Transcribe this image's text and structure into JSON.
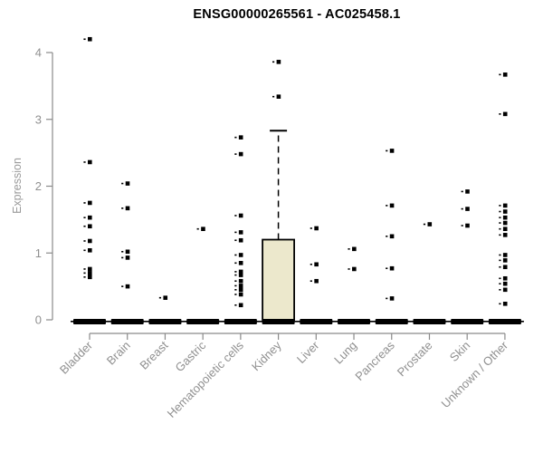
{
  "chart_data": {
    "type": "boxplot",
    "title": "ENSG00000265561 - AC025458.1",
    "ylabel": "Expression",
    "ylim": [
      0,
      4
    ],
    "yticks": [
      0,
      1,
      2,
      3,
      4
    ],
    "grid": false,
    "legend": "none",
    "categories": [
      "Bladder",
      "Brain",
      "Breast",
      "Gastric",
      "Hematopoietic cells",
      "Kidney",
      "Liver",
      "Lung",
      "Pancreas",
      "Prostate",
      "Skin",
      "Unknown / Other"
    ],
    "boxes": [
      {
        "category": "Bladder",
        "median": 0,
        "q1": 0,
        "q3": 0,
        "whisker_low": 0,
        "whisker_high": 0,
        "outliers": [
          4.2,
          2.36,
          1.75,
          1.53,
          1.4,
          1.18,
          1.04,
          0.76,
          0.7,
          0.64
        ]
      },
      {
        "category": "Brain",
        "median": 0,
        "q1": 0,
        "q3": 0,
        "whisker_low": 0,
        "whisker_high": 0,
        "outliers": [
          2.04,
          1.67,
          1.02,
          0.93,
          0.5
        ]
      },
      {
        "category": "Breast",
        "median": 0,
        "q1": 0,
        "q3": 0,
        "whisker_low": 0,
        "whisker_high": 0,
        "outliers": [
          0.33
        ]
      },
      {
        "category": "Gastric",
        "median": 0,
        "q1": 0,
        "q3": 0,
        "whisker_low": 0,
        "whisker_high": 0,
        "outliers": [
          1.36
        ]
      },
      {
        "category": "Hematopoietic cells",
        "median": 0,
        "q1": 0,
        "q3": 0,
        "whisker_low": 0,
        "whisker_high": 0,
        "outliers": [
          2.73,
          2.48,
          1.56,
          1.31,
          1.19,
          0.97,
          0.85,
          0.72,
          0.67,
          0.58,
          0.51,
          0.45,
          0.38,
          0.22
        ]
      },
      {
        "category": "Kidney",
        "median": 0,
        "q1": 0,
        "q3": 1.2,
        "whisker_low": 0,
        "whisker_high": 2.83,
        "outliers": [
          3.86,
          3.34
        ]
      },
      {
        "category": "Liver",
        "median": 0,
        "q1": 0,
        "q3": 0,
        "whisker_low": 0,
        "whisker_high": 0,
        "outliers": [
          1.37,
          0.83,
          0.58
        ]
      },
      {
        "category": "Lung",
        "median": 0,
        "q1": 0,
        "q3": 0,
        "whisker_low": 0,
        "whisker_high": 0,
        "outliers": [
          1.06,
          0.76
        ]
      },
      {
        "category": "Pancreas",
        "median": 0,
        "q1": 0,
        "q3": 0,
        "whisker_low": 0,
        "whisker_high": 0,
        "outliers": [
          2.53,
          1.71,
          1.25,
          0.77,
          0.32
        ]
      },
      {
        "category": "Prostate",
        "median": 0,
        "q1": 0,
        "q3": 0,
        "whisker_low": 0,
        "whisker_high": 0,
        "outliers": [
          1.43
        ]
      },
      {
        "category": "Skin",
        "median": 0,
        "q1": 0,
        "q3": 0,
        "whisker_low": 0,
        "whisker_high": 0,
        "outliers": [
          1.92,
          1.66,
          1.41
        ]
      },
      {
        "category": "Unknown / Other",
        "median": 0,
        "q1": 0,
        "q3": 0,
        "whisker_low": 0,
        "whisker_high": 0,
        "outliers": [
          3.67,
          3.08,
          1.71,
          1.62,
          1.53,
          1.45,
          1.36,
          1.27,
          0.97,
          0.89,
          0.79,
          0.62,
          0.54,
          0.45,
          0.24
        ]
      }
    ],
    "styles": {
      "box_fill": "#ECE8CC",
      "box_stroke": "#000000",
      "median_color": "#000000",
      "point_color": "#000000",
      "axis_color": "#8a8a8a",
      "tick_label_color": "#909090",
      "axis_title_color": "#9a9a9a",
      "title_color": "#000000",
      "background": "#ffffff"
    }
  }
}
